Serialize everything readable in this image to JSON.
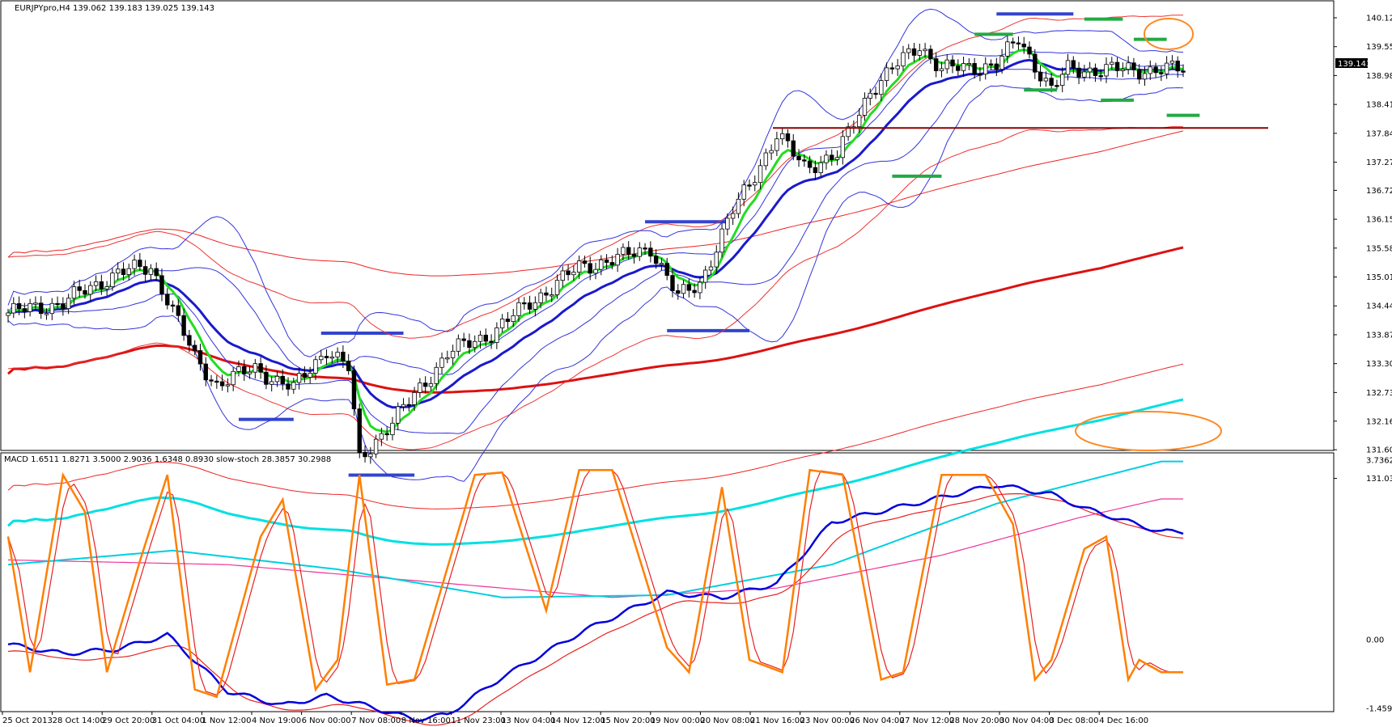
{
  "window": {
    "main_header": "EURJPYpro,H4  139.062 139.183 139.025 139.143",
    "sub_header": "MACD 1.6511 1.8271 3.5000 2.9036 1.6348 0.8930  slow-stoch 28.3857 30.2988",
    "current_price_label": "139.143"
  },
  "chart_data": [
    {
      "type": "line",
      "title": "EURJPYpro,H4",
      "ylim": [
        131.0,
        140.3
      ],
      "y_ticks": [
        "140.125",
        "139.555",
        "138.985",
        "138.415",
        "137.845",
        "137.275",
        "136.720",
        "136.150",
        "135.580",
        "135.010",
        "134.440",
        "133.870",
        "133.300",
        "132.730",
        "132.165",
        "131.600",
        "131.035"
      ],
      "x_ticks": [
        "25 Oct 2013",
        "28 Oct 14:00",
        "29 Oct 20:00",
        "31 Oct 04:00",
        "1 Nov 12:00",
        "4 Nov 19:00",
        "6 Nov 00:00",
        "7 Nov 08:00",
        "8 Nov 16:00",
        "11 Nov 23:00",
        "13 Nov 04:00",
        "14 Nov 12:00",
        "15 Nov 20:00",
        "19 Nov 00:00",
        "20 Nov 08:00",
        "21 Nov 16:00",
        "23 Nov 00:00",
        "26 Nov 04:00",
        "27 Nov 12:00",
        "28 Nov 20:00",
        "30 Nov 04:00",
        "3 Dec 08:00",
        "4 Dec 16:00"
      ],
      "price_anchors": [
        {
          "i": 0,
          "v": 134.3
        },
        {
          "i": 10,
          "v": 134.5
        },
        {
          "i": 20,
          "v": 135.1
        },
        {
          "i": 26,
          "v": 135.2
        },
        {
          "i": 29,
          "v": 134.6
        },
        {
          "i": 34,
          "v": 133.4
        },
        {
          "i": 38,
          "v": 132.9
        },
        {
          "i": 45,
          "v": 133.2
        },
        {
          "i": 52,
          "v": 132.8
        },
        {
          "i": 58,
          "v": 133.6
        },
        {
          "i": 62,
          "v": 133.2
        },
        {
          "i": 64,
          "v": 131.4
        },
        {
          "i": 67,
          "v": 131.8
        },
        {
          "i": 72,
          "v": 132.4
        },
        {
          "i": 80,
          "v": 133.5
        },
        {
          "i": 88,
          "v": 133.9
        },
        {
          "i": 95,
          "v": 134.5
        },
        {
          "i": 104,
          "v": 135.2
        },
        {
          "i": 112,
          "v": 135.4
        },
        {
          "i": 117,
          "v": 135.6
        },
        {
          "i": 122,
          "v": 134.6
        },
        {
          "i": 126,
          "v": 134.9
        },
        {
          "i": 132,
          "v": 136.3
        },
        {
          "i": 140,
          "v": 137.8
        },
        {
          "i": 145,
          "v": 137.2
        },
        {
          "i": 151,
          "v": 137.4
        },
        {
          "i": 157,
          "v": 138.7
        },
        {
          "i": 166,
          "v": 139.6
        },
        {
          "i": 170,
          "v": 139.1
        },
        {
          "i": 180,
          "v": 139.2
        },
        {
          "i": 184,
          "v": 139.7
        },
        {
          "i": 190,
          "v": 138.7
        },
        {
          "i": 193,
          "v": 139.1
        }
      ],
      "series": [
        {
          "key": "ema_green",
          "color": "#22dd22"
        },
        {
          "key": "ema_blue",
          "color": "#1a1acc"
        },
        {
          "key": "bollinger",
          "color": "#3333dd"
        },
        {
          "key": "envelope",
          "color": "#ee2222"
        },
        {
          "key": "sma_red",
          "color": "#dd1111"
        },
        {
          "key": "sma_cyan",
          "color": "#00e0e0"
        }
      ],
      "support_line": {
        "value": 137.95,
        "color": "#8b0000"
      },
      "annotations": {
        "blue_marks": [
          {
            "i0": 57,
            "i1": 72,
            "v": 133.9
          },
          {
            "i0": 42,
            "i1": 52,
            "v": 132.2
          },
          {
            "i0": 62,
            "i1": 74,
            "v": 131.1
          },
          {
            "i0": 116,
            "i1": 131,
            "v": 136.1
          },
          {
            "i0": 120,
            "i1": 135,
            "v": 133.95
          },
          {
            "i0": 180,
            "i1": 194,
            "v": 140.2
          }
        ],
        "green_marks": [
          {
            "i0": 176,
            "i1": 183,
            "v": 139.8
          },
          {
            "i0": 185,
            "i1": 191,
            "v": 138.7
          },
          {
            "i0": 161,
            "i1": 170,
            "v": 137.0
          },
          {
            "i0": 196,
            "i1": 203,
            "v": 140.1
          },
          {
            "i0": 199,
            "i1": 205,
            "v": 138.5
          },
          {
            "i0": 205,
            "i1": 211,
            "v": 139.7
          },
          {
            "i0": 211,
            "i1": 217,
            "v": 138.2
          }
        ],
        "orange_circles": [
          "upper-right",
          "lower-right"
        ]
      }
    },
    {
      "type": "line",
      "title": "MACD / slow-stoch",
      "ylim": [
        -1.4594,
        3.7362
      ],
      "y_ticks": [
        "3.7362",
        "0.00",
        "-1.4594"
      ],
      "stoch_anchors": [
        [
          0,
          70
        ],
        [
          4,
          15
        ],
        [
          10,
          95
        ],
        [
          14,
          80
        ],
        [
          18,
          15
        ],
        [
          24,
          60
        ],
        [
          29,
          95
        ],
        [
          34,
          8
        ],
        [
          38,
          5
        ],
        [
          46,
          70
        ],
        [
          50,
          85
        ],
        [
          56,
          8
        ],
        [
          60,
          20
        ],
        [
          64,
          95
        ],
        [
          69,
          10
        ],
        [
          74,
          12
        ],
        [
          85,
          95
        ],
        [
          90,
          96
        ],
        [
          98,
          40
        ],
        [
          104,
          97
        ],
        [
          110,
          97
        ],
        [
          120,
          25
        ],
        [
          124,
          15
        ],
        [
          130,
          90
        ],
        [
          135,
          20
        ],
        [
          141,
          15
        ],
        [
          146,
          97
        ],
        [
          152,
          95
        ],
        [
          159,
          12
        ],
        [
          163,
          15
        ],
        [
          170,
          95
        ],
        [
          178,
          95
        ],
        [
          183,
          75
        ],
        [
          187,
          12
        ],
        [
          190,
          20
        ],
        [
          196,
          65
        ],
        [
          200,
          70
        ],
        [
          204,
          12
        ],
        [
          206,
          20
        ],
        [
          210,
          15
        ]
      ],
      "macd_anchors": [
        [
          0,
          -0.1
        ],
        [
          10,
          -0.3
        ],
        [
          20,
          -0.2
        ],
        [
          29,
          0.1
        ],
        [
          40,
          -1.1
        ],
        [
          50,
          -1.4
        ],
        [
          58,
          -1.2
        ],
        [
          65,
          -1.4
        ],
        [
          74,
          -1.7
        ],
        [
          80,
          -1.6
        ],
        [
          90,
          -0.8
        ],
        [
          105,
          0.2
        ],
        [
          120,
          1.0
        ],
        [
          130,
          0.9
        ],
        [
          140,
          1.2
        ],
        [
          150,
          2.5
        ],
        [
          165,
          2.9
        ],
        [
          180,
          3.3
        ],
        [
          190,
          3.1
        ],
        [
          196,
          2.8
        ],
        [
          210,
          2.3
        ]
      ],
      "macd_signal_offset": -0.15,
      "cyan_anchors": [
        [
          0,
          1.6
        ],
        [
          30,
          1.9
        ],
        [
          60,
          1.5
        ],
        [
          90,
          0.9
        ],
        [
          120,
          0.95
        ],
        [
          150,
          1.6
        ],
        [
          180,
          2.9
        ],
        [
          210,
          3.8
        ]
      ],
      "magenta_anchors": [
        [
          0,
          1.7
        ],
        [
          40,
          1.6
        ],
        [
          80,
          1.2
        ],
        [
          110,
          0.9
        ],
        [
          140,
          1.1
        ],
        [
          170,
          1.8
        ],
        [
          195,
          2.6
        ],
        [
          210,
          3.0
        ]
      ],
      "series": [
        {
          "key": "stoch_main",
          "color": "#ff7f00"
        },
        {
          "key": "stoch_signal",
          "color": "#e82020"
        },
        {
          "key": "macd_main",
          "color": "#0000dd"
        },
        {
          "key": "macd_signal",
          "color": "#e82020"
        },
        {
          "key": "cyan",
          "color": "#00cfe0"
        },
        {
          "key": "magenta",
          "color": "#ee3399"
        }
      ]
    }
  ]
}
